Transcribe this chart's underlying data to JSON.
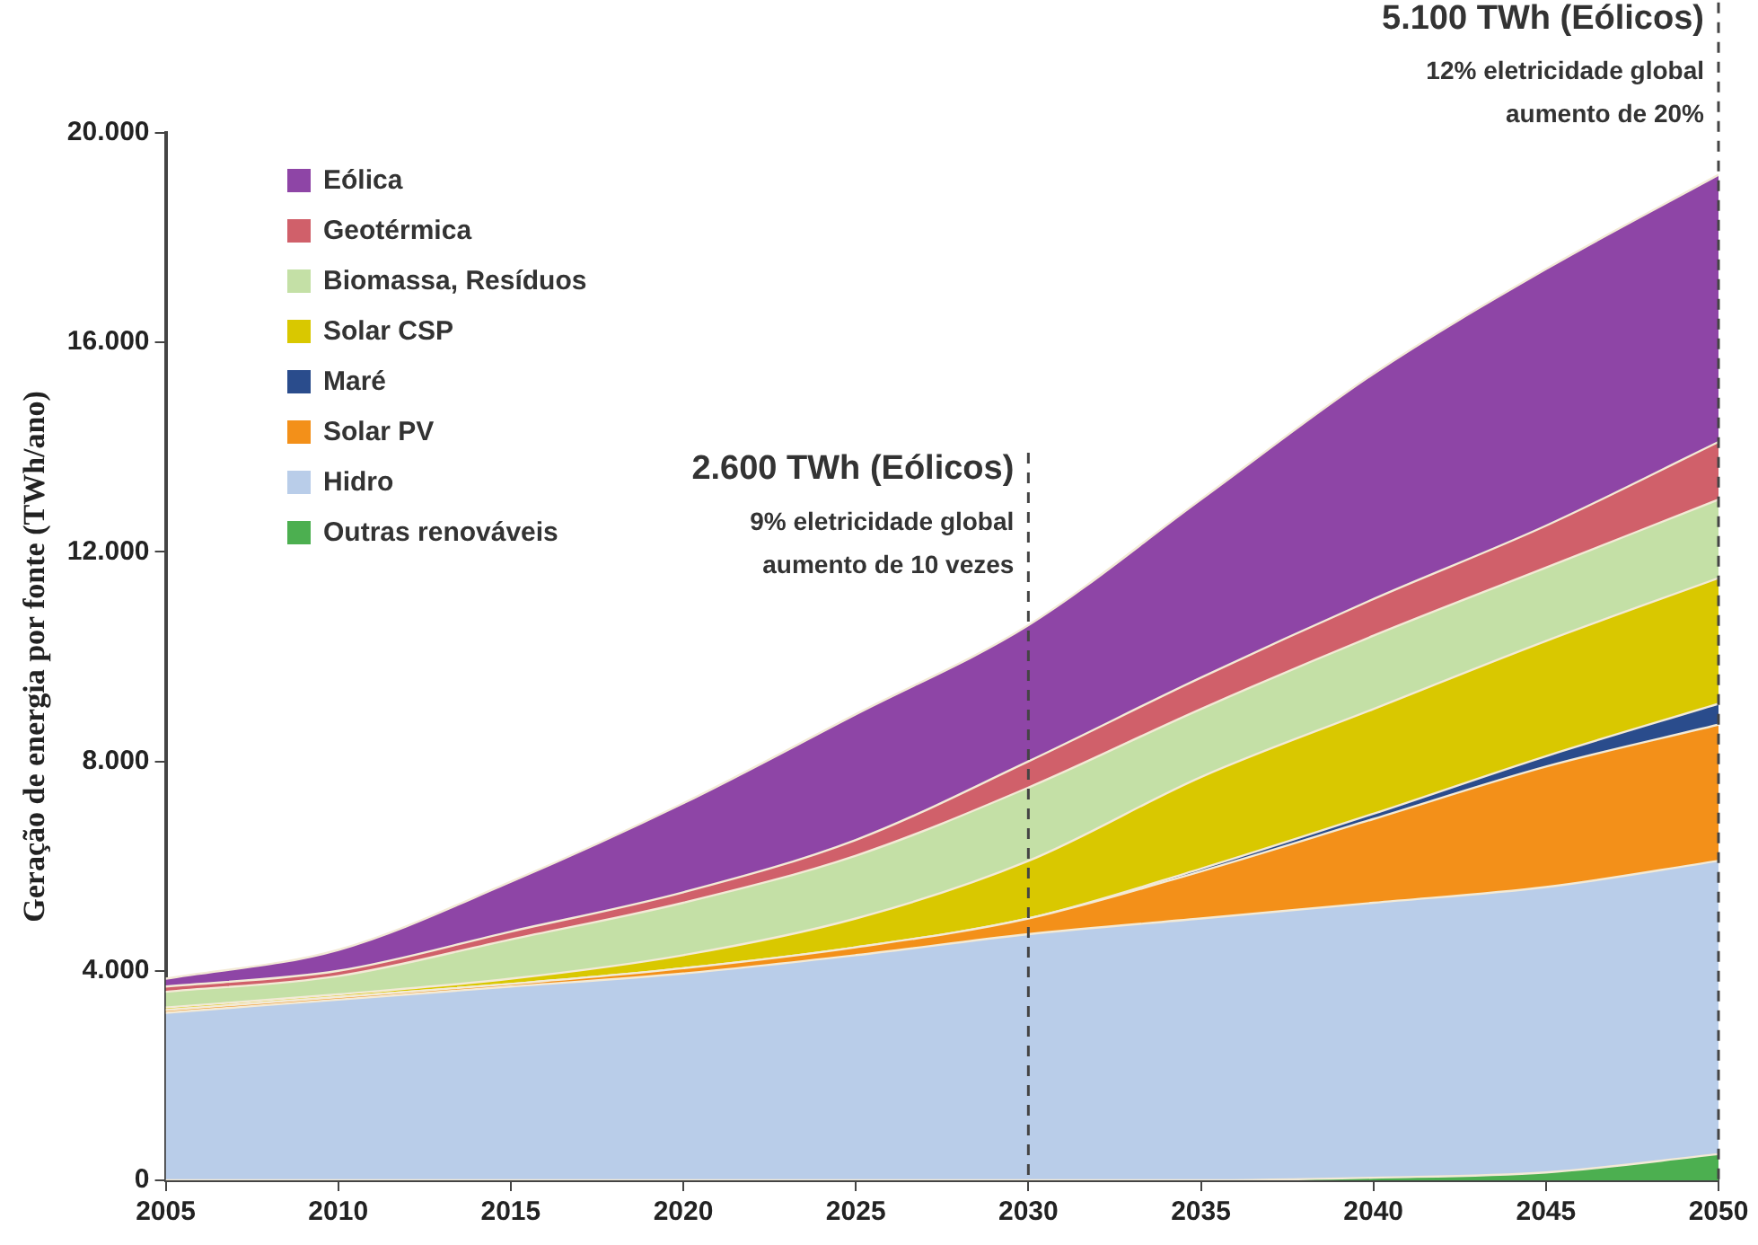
{
  "chart_data": {
    "type": "area",
    "stacked": true,
    "ylabel": "Geração de energia por fonte (TWh/ano)",
    "x": [
      2005,
      2010,
      2015,
      2020,
      2025,
      2030,
      2035,
      2040,
      2045,
      2050
    ],
    "xlim": [
      2005,
      2050
    ],
    "xticks": [
      2005,
      2010,
      2015,
      2020,
      2025,
      2030,
      2035,
      2040,
      2045,
      2050
    ],
    "ylim": [
      0,
      20000
    ],
    "yticks": [
      0,
      {
        "value": 4000,
        "label": "4.000"
      },
      {
        "value": 8000,
        "label": "8.000"
      },
      {
        "value": 12000,
        "label": "12.000"
      },
      {
        "value": 16000,
        "label": "16.000"
      },
      {
        "value": 20000,
        "label": "20.000"
      }
    ],
    "grid": false,
    "legend": "top left",
    "series": [
      {
        "name": "Outras renováveis",
        "color": "#4caf50",
        "values": [
          0,
          0,
          0,
          0,
          0,
          0,
          0,
          50,
          150,
          500
        ]
      },
      {
        "name": "Hidro",
        "color": "#b9cde9",
        "values": [
          3200,
          3450,
          3700,
          3950,
          4300,
          4700,
          5000,
          5250,
          5450,
          5600
        ]
      },
      {
        "name": "Solar PV",
        "color": "#f39019",
        "values": [
          50,
          50,
          50,
          100,
          150,
          300,
          900,
          1600,
          2300,
          2600
        ]
      },
      {
        "name": "Maré",
        "color": "#2a4c8c",
        "values": [
          0,
          0,
          0,
          0,
          0,
          0,
          50,
          100,
          200,
          400
        ]
      },
      {
        "name": "Solar CSP",
        "color": "#d9c800",
        "values": [
          50,
          50,
          100,
          250,
          550,
          1100,
          1750,
          2000,
          2200,
          2400
        ]
      },
      {
        "name": "Biomassa, Resíduos",
        "color": "#c4e0a6",
        "values": [
          300,
          350,
          750,
          1000,
          1200,
          1400,
          1300,
          1400,
          1400,
          1500
        ]
      },
      {
        "name": "Geotérmica",
        "color": "#d0606a",
        "values": [
          100,
          100,
          150,
          200,
          300,
          500,
          600,
          700,
          800,
          1100
        ]
      },
      {
        "name": "Eólica",
        "color": "#8e45a6",
        "values": [
          150,
          400,
          950,
          1700,
          2400,
          2600,
          3400,
          4300,
          4900,
          5100
        ]
      }
    ],
    "ref_lines": [
      {
        "axis": "x",
        "value": 2030,
        "label": "2.600 TWh (Eólicos)",
        "line_style": "dashed",
        "color": "#444444"
      },
      {
        "axis": "x",
        "value": 2050,
        "label": "5.100 TWh (Eólicos)",
        "line_style": "dashed",
        "color": "#444444"
      }
    ],
    "annotations": [
      {
        "text": "9% eletricidade global\naumento de 10 vezes",
        "x": 2030
      },
      {
        "text": "12% eletricidade global\naumento de 20%",
        "x": 2050
      }
    ]
  }
}
